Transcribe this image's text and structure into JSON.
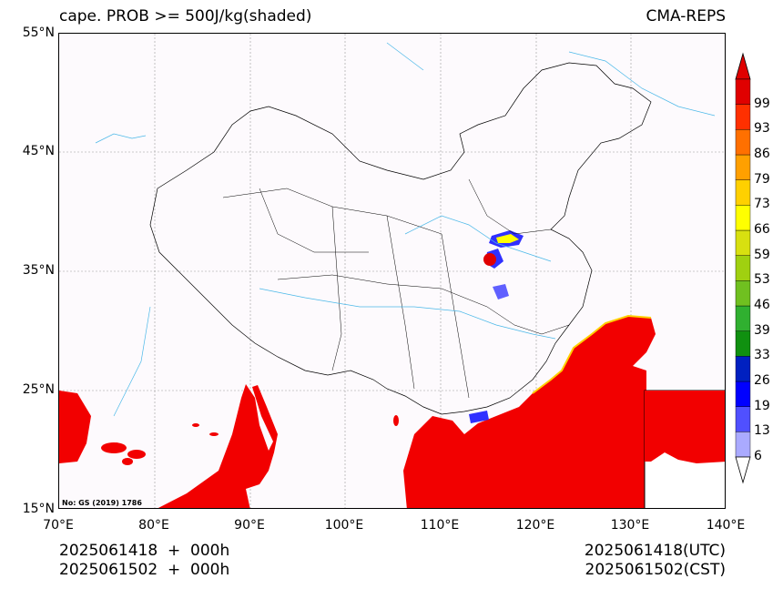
{
  "header": {
    "title_left": "cape. PROB >= 500J/kg(shaded)",
    "title_right": "CMA-REPS"
  },
  "axes": {
    "lat_labels": [
      "55°N",
      "45°N",
      "35°N",
      "25°N",
      "15°N"
    ],
    "lon_labels": [
      "70°E",
      "80°E",
      "90°E",
      "100°E",
      "110°E",
      "120°E",
      "130°E",
      "140°E"
    ]
  },
  "colorbar": {
    "levels": [
      "6",
      "13",
      "19",
      "26",
      "33",
      "39",
      "46",
      "53",
      "59",
      "66",
      "73",
      "79",
      "86",
      "93",
      "99"
    ],
    "colors": [
      "#aaaaff",
      "#5050ff",
      "#0000ff",
      "#0020c0",
      "#109010",
      "#30b030",
      "#70c020",
      "#a0d010",
      "#d8e010",
      "#ffff00",
      "#ffd000",
      "#ffa000",
      "#ff7000",
      "#ff3000",
      "#e00000"
    ],
    "extend_color_top": "#e00000",
    "extend_color_bottom": "#ffffff"
  },
  "map": {
    "extent": {
      "lon_min": 70,
      "lon_max": 140,
      "lat_min": 15,
      "lat_max": 55
    },
    "high_prob_color": "#f20000",
    "border_color": "#000000",
    "river_color": "#4ab8e8",
    "grid_color": "#9a9a9a",
    "approval_note": "No: GS (2019) 1786"
  },
  "footer": {
    "left_line1": "2025061418  +  000h",
    "left_line2": "2025061502  +  000h",
    "right_line1": "2025061418(UTC)",
    "right_line2": "2025061502(CST)"
  }
}
